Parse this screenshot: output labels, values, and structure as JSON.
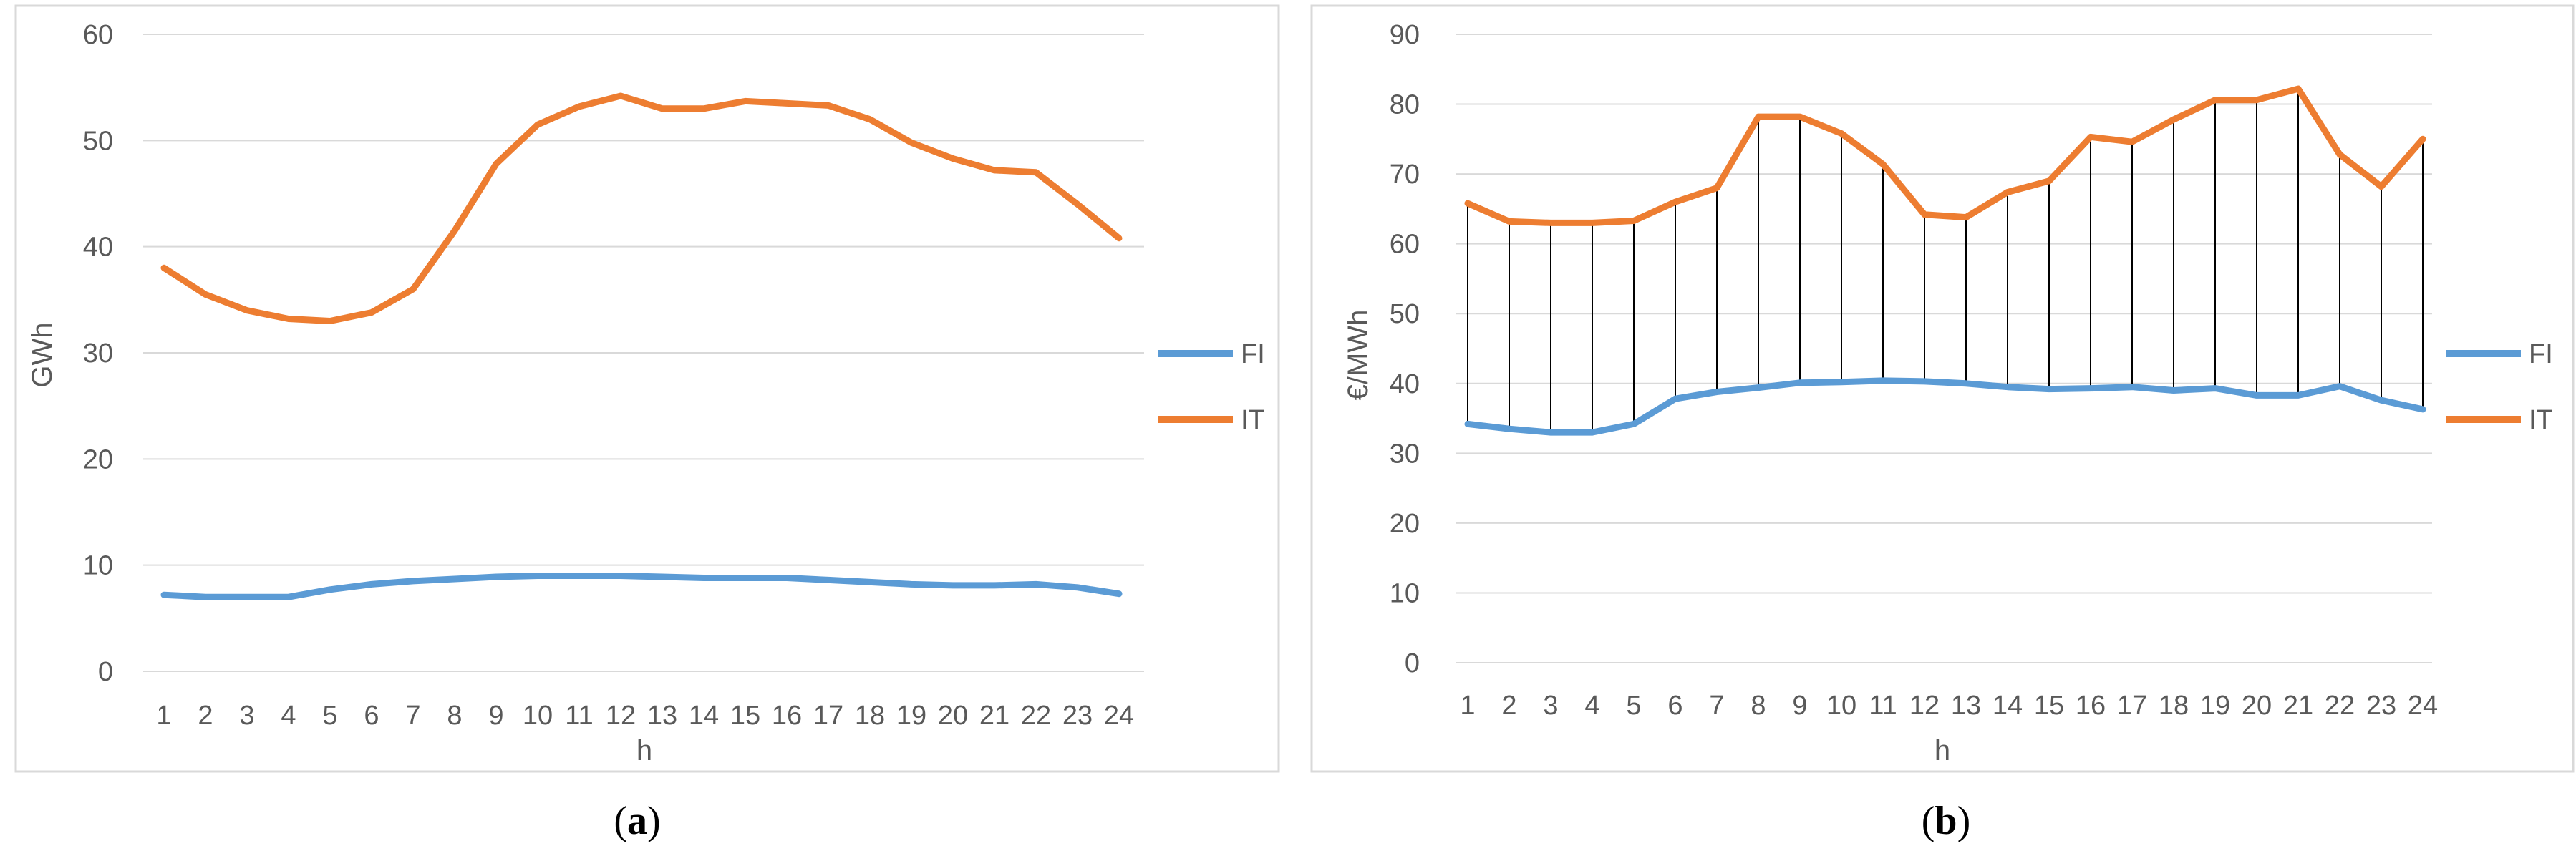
{
  "colors": {
    "FI": "#5b9bd5",
    "IT": "#ed7d31",
    "grid": "#d9d9d9",
    "text": "#595959",
    "droplines": "#000000"
  },
  "chart_data": [
    {
      "type": "line",
      "panel": "a",
      "caption": "(a)",
      "caption_letter": "a",
      "xlabel": "h",
      "ylabel": "GWh",
      "ylim": [
        0,
        60
      ],
      "yticks": [
        0,
        10,
        20,
        30,
        40,
        50,
        60
      ],
      "grid": true,
      "legend_position": "right",
      "x": [
        1,
        2,
        3,
        4,
        5,
        6,
        7,
        8,
        9,
        10,
        11,
        12,
        13,
        14,
        15,
        16,
        17,
        18,
        19,
        20,
        21,
        22,
        23,
        24
      ],
      "series": [
        {
          "name": "FI",
          "values": [
            7.2,
            7.0,
            7.0,
            7.0,
            7.7,
            8.2,
            8.5,
            8.7,
            8.9,
            9.0,
            9.0,
            9.0,
            8.9,
            8.8,
            8.8,
            8.8,
            8.6,
            8.4,
            8.2,
            8.1,
            8.1,
            8.2,
            7.9,
            7.3
          ]
        },
        {
          "name": "IT",
          "values": [
            38.0,
            35.5,
            34.0,
            33.2,
            33.0,
            33.8,
            36.0,
            41.5,
            47.8,
            51.5,
            53.2,
            54.2,
            53.0,
            53.0,
            53.7,
            53.5,
            53.3,
            52.0,
            49.8,
            48.3,
            47.2,
            47.0,
            44.0,
            40.8
          ]
        }
      ],
      "droplines": false
    },
    {
      "type": "line",
      "panel": "b",
      "caption": "(b)",
      "caption_letter": "b",
      "xlabel": "h",
      "ylabel": "€/MWh",
      "ylim": [
        0,
        90
      ],
      "yticks": [
        0,
        10,
        20,
        30,
        40,
        50,
        60,
        70,
        80,
        90
      ],
      "grid": true,
      "legend_position": "right",
      "x": [
        1,
        2,
        3,
        4,
        5,
        6,
        7,
        8,
        9,
        10,
        11,
        12,
        13,
        14,
        15,
        16,
        17,
        18,
        19,
        20,
        21,
        22,
        23,
        24
      ],
      "series": [
        {
          "name": "FI",
          "values": [
            34.2,
            33.5,
            33.0,
            33.0,
            34.2,
            37.8,
            38.8,
            39.4,
            40.1,
            40.2,
            40.4,
            40.3,
            40.0,
            39.5,
            39.2,
            39.3,
            39.5,
            39.0,
            39.3,
            38.3,
            38.3,
            39.6,
            37.6,
            36.3
          ]
        },
        {
          "name": "IT",
          "values": [
            65.8,
            63.2,
            63.0,
            63.0,
            63.3,
            66.0,
            68.0,
            78.2,
            78.2,
            75.8,
            71.4,
            64.2,
            63.8,
            67.4,
            69.0,
            75.3,
            74.6,
            77.8,
            80.6,
            80.6,
            82.2,
            72.8,
            68.2,
            75.0
          ]
        }
      ],
      "droplines": true
    }
  ]
}
